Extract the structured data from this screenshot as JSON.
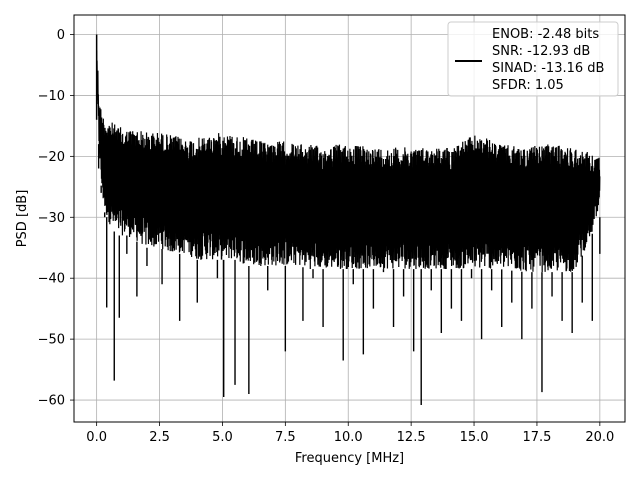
{
  "chart_data": {
    "type": "line",
    "xlabel": "Frequency [MHz]",
    "ylabel": "PSD [dB]",
    "xlim": [
      -0.9,
      21.0
    ],
    "ylim": [
      -63.6,
      3.2
    ],
    "x_ticks": [
      0.0,
      2.5,
      5.0,
      7.5,
      10.0,
      12.5,
      15.0,
      17.5,
      20.0
    ],
    "x_tick_labels": [
      "0.0",
      "2.5",
      "5.0",
      "7.5",
      "10.0",
      "12.5",
      "15.0",
      "17.5",
      "20.0"
    ],
    "y_ticks": [
      0,
      -10,
      -20,
      -30,
      -40,
      -50,
      -60
    ],
    "y_tick_labels": [
      "0",
      "−10",
      "−20",
      "−30",
      "−40",
      "−50",
      "−60"
    ],
    "grid": true,
    "legend_position": "top-right",
    "series_color": "#000000",
    "series": [
      {
        "legend": [
          "ENOB: -2.48 bits",
          "SNR: -12.93 dB",
          "SINAD: -13.16 dB",
          "SFDR: 1.05"
        ],
        "x": [
          0.0,
          0.02,
          0.05,
          0.08,
          0.12,
          0.18,
          0.25,
          0.32,
          0.4,
          0.5,
          0.6,
          0.7,
          0.8,
          0.9,
          1.0,
          1.2,
          1.4,
          1.6,
          1.8,
          2.0,
          2.3,
          2.6,
          3.0,
          3.3,
          3.6,
          4.0,
          4.4,
          4.8,
          5.05,
          5.3,
          5.5,
          5.8,
          6.05,
          6.4,
          6.8,
          7.2,
          7.5,
          7.8,
          8.2,
          8.6,
          9.0,
          9.4,
          9.8,
          10.2,
          10.6,
          11.0,
          11.4,
          11.8,
          12.2,
          12.6,
          12.9,
          13.3,
          13.7,
          14.1,
          14.5,
          14.9,
          15.3,
          15.7,
          16.1,
          16.5,
          16.9,
          17.3,
          17.7,
          18.1,
          18.5,
          18.9,
          19.3,
          19.7,
          20.0
        ],
        "y": [
          0.0,
          -8.0,
          -14.0,
          -22.0,
          -18.0,
          -26.0,
          -20.0,
          -30.0,
          -44.8,
          -25.0,
          -31.0,
          -56.8,
          -22.0,
          -46.5,
          -28.0,
          -36.0,
          -24.0,
          -43.0,
          -30.0,
          -38.0,
          -27.0,
          -41.0,
          -33.0,
          -47.0,
          -29.0,
          -44.0,
          -35.0,
          -40.0,
          -59.5,
          -31.0,
          -57.5,
          -36.0,
          -59.0,
          -33.0,
          -42.0,
          -38.0,
          -52.0,
          -35.0,
          -47.0,
          -40.0,
          -48.0,
          -36.0,
          -53.5,
          -41.0,
          -52.5,
          -45.0,
          -39.0,
          -48.0,
          -43.0,
          -52.0,
          -60.8,
          -42.0,
          -49.0,
          -45.0,
          -47.0,
          -40.0,
          -50.0,
          -42.0,
          -48.0,
          -44.0,
          -50.0,
          -45.0,
          -58.7,
          -43.0,
          -47.0,
          -49.0,
          -44.0,
          -47.0,
          -36.0
        ]
      }
    ],
    "upper_envelope": {
      "x": [
        0.0,
        0.1,
        0.2,
        0.3,
        0.5,
        0.8,
        1.2,
        1.6,
        2.0,
        2.5,
        3.0,
        3.5,
        4.0,
        4.5,
        5.0,
        5.5,
        6.0,
        6.5,
        7.0,
        7.5,
        8.0,
        8.5,
        9.0,
        9.5,
        10.0,
        11.0,
        12.0,
        13.0,
        14.0,
        15.0,
        15.5,
        16.0,
        17.0,
        18.0,
        19.0,
        20.0
      ],
      "y": [
        0.0,
        -10.5,
        -12.5,
        -13.5,
        -14.0,
        -15.0,
        -15.5,
        -15.5,
        -16.0,
        -16.0,
        -16.5,
        -17.0,
        -17.0,
        -16.5,
        -16.0,
        -16.5,
        -17.0,
        -17.5,
        -17.5,
        -17.5,
        -18.0,
        -18.0,
        -18.5,
        -18.0,
        -18.0,
        -18.5,
        -18.5,
        -18.5,
        -18.5,
        -16.5,
        -17.0,
        -18.0,
        -18.5,
        -18.0,
        -18.5,
        -20.0
      ]
    },
    "lower_envelope": {
      "x": [
        0.0,
        0.1,
        0.2,
        0.3,
        0.5,
        0.8,
        1.2,
        1.6,
        2.0,
        2.5,
        3.0,
        3.5,
        4.0,
        4.5,
        5.0,
        5.5,
        6.0,
        6.5,
        7.0,
        7.5,
        8.0,
        8.5,
        9.0,
        9.5,
        10.0,
        11.0,
        12.0,
        13.0,
        14.0,
        15.0,
        15.5,
        16.0,
        17.0,
        18.0,
        19.0,
        20.0
      ],
      "y": [
        -10.0,
        -20.0,
        -26.0,
        -29.0,
        -31.0,
        -33.0,
        -33.0,
        -34.0,
        -35.0,
        -35.0,
        -36.0,
        -36.0,
        -37.0,
        -37.0,
        -37.0,
        -37.0,
        -38.0,
        -38.0,
        -38.0,
        -38.0,
        -38.0,
        -38.5,
        -38.5,
        -38.5,
        -38.5,
        -38.5,
        -38.5,
        -38.5,
        -38.5,
        -38.5,
        -38.5,
        -38.5,
        -39.0,
        -39.0,
        -39.0,
        -30.0
      ]
    }
  }
}
